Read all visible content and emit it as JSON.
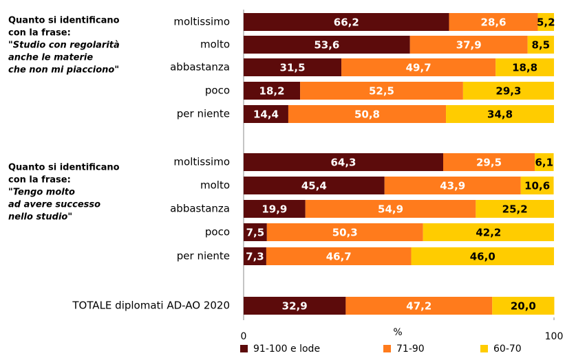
{
  "chart_data": {
    "type": "stacked-barh",
    "categories": [
      "moltissimo",
      "molto",
      "abbastanza",
      "poco",
      "per niente",
      "moltissimo",
      "molto",
      "abbastanza",
      "poco",
      "per niente",
      "TOTALE diplomati AD-AO 2020"
    ],
    "series": [
      {
        "name": "91-100 e lode",
        "color": "#5c0b0b",
        "values": [
          66.2,
          53.6,
          31.5,
          18.2,
          14.4,
          64.3,
          45.4,
          19.9,
          7.5,
          7.3,
          32.9
        ],
        "value_labels": [
          "66,2",
          "53,6",
          "31,5",
          "18,2",
          "14,4",
          "64,3",
          "45,4",
          "19,9",
          "7,5",
          "7,3",
          "32,9"
        ]
      },
      {
        "name": "71-90",
        "color": "#ff7b1c",
        "values": [
          28.6,
          37.9,
          49.7,
          52.5,
          50.8,
          29.5,
          43.9,
          54.9,
          50.3,
          46.7,
          47.2
        ],
        "value_labels": [
          "28,6",
          "37,9",
          "49,7",
          "52,5",
          "50,8",
          "29,5",
          "43,9",
          "54,9",
          "50,3",
          "46,7",
          "47,2"
        ]
      },
      {
        "name": "60-70",
        "color": "#ffcc00",
        "values": [
          5.2,
          8.5,
          18.8,
          29.3,
          34.8,
          6.1,
          10.6,
          25.2,
          42.2,
          46.0,
          20.0
        ],
        "value_labels": [
          "5,2",
          "8,5",
          "18,8",
          "29,3",
          "34,8",
          "6,1",
          "10,6",
          "25,2",
          "42,2",
          "46,0",
          "20,0"
        ]
      }
    ],
    "xlim": [
      0,
      100
    ],
    "xticks": [
      0,
      100
    ],
    "xlabel": "%",
    "annotations": [
      {
        "lines": [
          "Quanto si identificano",
          "con la frase:",
          "\"Studio con regolarità",
          "anche le materie",
          "che non mi piacciono\""
        ]
      },
      {
        "lines": [
          "Quanto si identificano",
          "con la frase:",
          "\"Tengo molto",
          "ad avere successo",
          "nello studio\""
        ]
      }
    ],
    "legend": "bottom"
  }
}
